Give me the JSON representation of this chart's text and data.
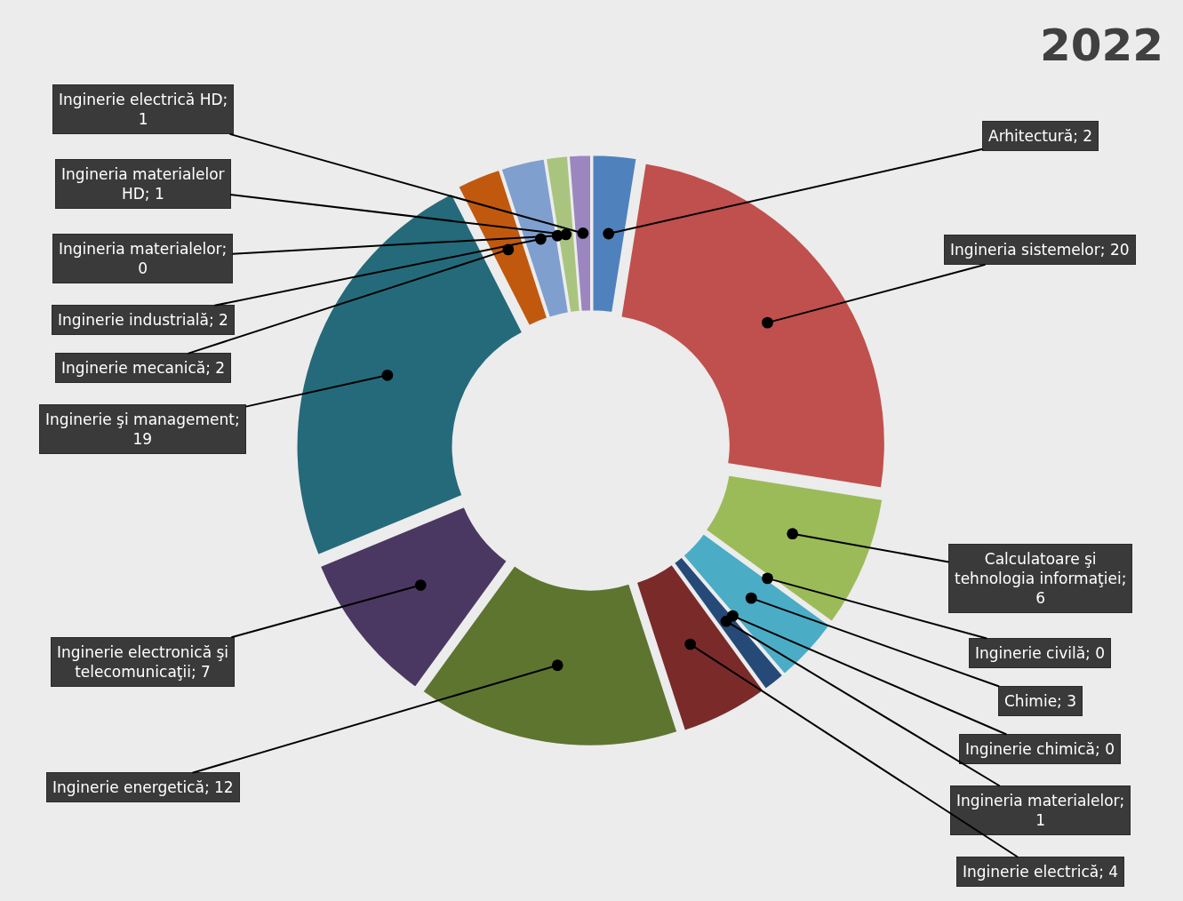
{
  "chart_data": {
    "type": "donut",
    "title": "2022",
    "categories": [
      "Arhitectură; 2",
      "Ingineria sistemelor; 20",
      "Calculatoare şi tehnologia informaţiei; 6",
      "Inginerie civilă; 0",
      "Chimie; 3",
      "Inginerie chimică; 0",
      "Ingineria materialelor; 1",
      "Inginerie electrică; 4",
      "Inginerie energetică; 12",
      "Inginerie electronică şi telecomunicaţii; 7",
      "Inginerie şi management; 19",
      "Inginerie mecanică; 2",
      "Inginerie industrială; 2",
      "Ingineria materialelor; 0",
      "Ingineria materialelor HD; 1",
      "Inginerie electrică HD; 1"
    ],
    "values": [
      2,
      20,
      6,
      0,
      3,
      0,
      1,
      4,
      12,
      7,
      19,
      2,
      2,
      0,
      1,
      1
    ],
    "colors": [
      "#4f81bd",
      "#c0504d",
      "#9bbb59",
      "#8fa0c0",
      "#4bacc6",
      "#2d5080",
      "#264a78",
      "#7b2a2a",
      "#5e7530",
      "#4b3862",
      "#256a7a",
      "#c0590e",
      "#7f9fcf",
      "#c0c0c0",
      "#a9c47f",
      "#9b86c0"
    ],
    "legend": false
  }
}
